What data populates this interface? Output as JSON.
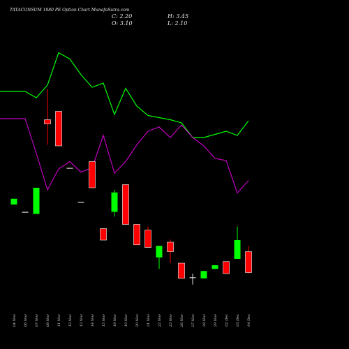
{
  "header": {
    "title": "TATACONSUM 1080  PE Option  Chart MunafaSutra.com",
    "close": "C: 2.20",
    "high": "H: 3.45",
    "open": "O: 3.10",
    "low": "L: 2.10"
  },
  "colors": {
    "background": "#000000",
    "up": "#00ff00",
    "down": "#ff0000",
    "line_green": "#00ff00",
    "line_purple": "#c000c0",
    "text": "#e6e6e6"
  },
  "chart_data": {
    "type": "candlestick",
    "dates": [
      "04 Nov",
      "06 Nov",
      "07 Nov",
      "08 Nov",
      "11 Nov",
      "12 Nov",
      "13 Nov",
      "14 Nov",
      "15 Nov",
      "18 Nov",
      "19 Nov",
      "20 Nov",
      "21 Nov",
      "22 Nov",
      "25 Nov",
      "26 Nov",
      "27 Nov",
      "28 Nov",
      "29 Nov",
      "02 Dec",
      "03 Dec",
      "04 Dec"
    ],
    "candles": [
      {
        "open": 12.35,
        "high": 12.35,
        "low": 11.8,
        "close": 11.8,
        "dir": "up"
      },
      {
        "open": 11.1,
        "high": 11.1,
        "low": 11.1,
        "close": 11.1,
        "dir": "flat"
      },
      {
        "open": 10.9,
        "high": 13.4,
        "low": 10.9,
        "close": 13.4,
        "dir": "up"
      },
      {
        "open": 19.9,
        "high": 22.8,
        "low": 17.5,
        "close": 19.5,
        "dir": "down"
      },
      {
        "open": 20.7,
        "high": 20.7,
        "low": 17.4,
        "close": 17.4,
        "dir": "down"
      },
      {
        "open": 15.3,
        "high": 15.3,
        "low": 15.3,
        "close": 15.3,
        "dir": "flat"
      },
      {
        "open": 12.05,
        "high": 12.05,
        "low": 12.05,
        "close": 12.05,
        "dir": "flat"
      },
      {
        "open": 15.9,
        "high": 15.9,
        "low": 13.4,
        "close": 13.4,
        "dir": "down"
      },
      {
        "open": 9.5,
        "high": 9.5,
        "low": 8.4,
        "close": 8.4,
        "dir": "down"
      },
      {
        "open": 11.1,
        "high": 13.2,
        "low": 10.65,
        "close": 12.95,
        "dir": "up"
      },
      {
        "open": 13.7,
        "high": 13.7,
        "low": 9.9,
        "close": 9.9,
        "dir": "down"
      },
      {
        "open": 9.9,
        "high": 9.9,
        "low": 7.95,
        "close": 7.95,
        "dir": "down"
      },
      {
        "open": 9.35,
        "high": 9.7,
        "low": 7.7,
        "close": 7.7,
        "dir": "down"
      },
      {
        "open": 6.75,
        "high": 7.85,
        "low": 5.65,
        "close": 7.85,
        "dir": "up"
      },
      {
        "open": 8.2,
        "high": 8.45,
        "low": 6.2,
        "close": 7.3,
        "dir": "down"
      },
      {
        "open": 6.2,
        "high": 6.2,
        "low": 4.75,
        "close": 4.75,
        "dir": "down"
      },
      {
        "open": 4.85,
        "high": 5.2,
        "low": 4.15,
        "close": 4.85,
        "dir": "flat"
      },
      {
        "open": 4.75,
        "high": 5.45,
        "low": 4.75,
        "close": 5.45,
        "dir": "up"
      },
      {
        "open": 5.65,
        "high": 6.0,
        "low": 5.65,
        "close": 6.0,
        "dir": "up"
      },
      {
        "open": 6.35,
        "high": 6.35,
        "low": 5.2,
        "close": 5.2,
        "dir": "down"
      },
      {
        "open": 6.6,
        "high": 9.7,
        "low": 6.6,
        "close": 8.4,
        "dir": "up"
      },
      {
        "open": 7.3,
        "high": 7.85,
        "low": 5.2,
        "close": 5.3,
        "dir": "down"
      }
    ],
    "lines": [
      {
        "color": "#00ff00",
        "values": [
          22.6,
          22.6,
          22.0,
          23.2,
          26.3,
          25.7,
          24.2,
          23.0,
          23.4,
          20.4,
          22.9,
          21.2,
          20.3,
          20.1,
          19.9,
          19.6,
          18.2,
          18.2,
          18.5,
          18.8,
          18.4,
          19.8
        ]
      },
      {
        "color": "#c000c0",
        "values": [
          20.0,
          20.0,
          16.7,
          13.2,
          15.2,
          15.9,
          14.9,
          15.3,
          18.4,
          14.8,
          15.9,
          17.5,
          18.8,
          19.2,
          18.2,
          19.4,
          18.2,
          17.4,
          16.2,
          16.0,
          12.9,
          14.1
        ]
      }
    ],
    "ylim": [
      2.0,
      28.0
    ],
    "grid": false,
    "legend": "none"
  }
}
